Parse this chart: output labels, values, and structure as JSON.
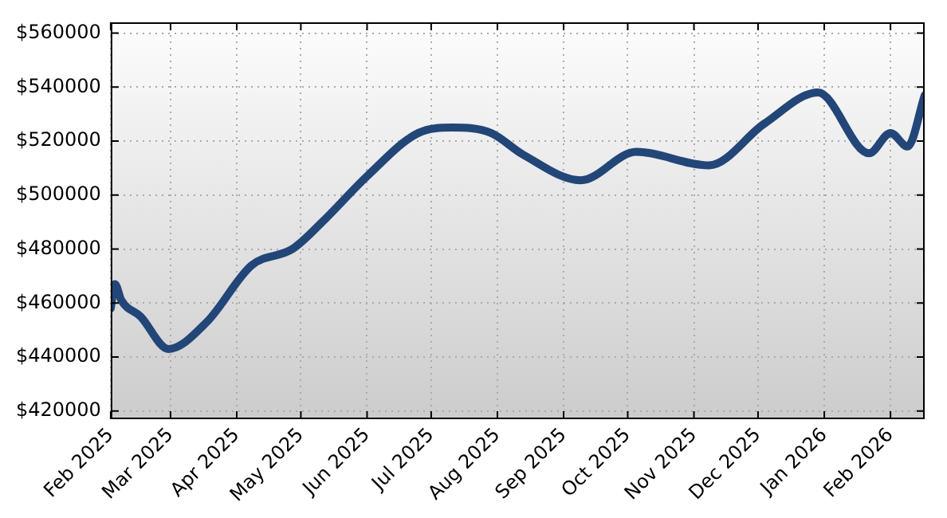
{
  "chart_data": {
    "type": "line",
    "grid": true,
    "marker": "none",
    "legend": false,
    "x": [
      "2025-02-01",
      "2025-02-03",
      "2025-02-06",
      "2025-02-15",
      "2025-02-28",
      "2025-03-18",
      "2025-04-08",
      "2025-04-27",
      "2025-05-11",
      "2025-06-01",
      "2025-06-25",
      "2025-07-11",
      "2025-07-29",
      "2025-08-13",
      "2025-09-09",
      "2025-10-05",
      "2025-11-08",
      "2025-12-04",
      "2025-12-29",
      "2026-01-22",
      "2026-02-01",
      "2026-02-09",
      "2026-02-17"
    ],
    "series": [
      {
        "color": "#234679",
        "values": [
          458000,
          467000,
          461000,
          455000,
          443000,
          453000,
          474000,
          480000,
          490000,
          507000,
          523000,
          525000,
          523000,
          515000,
          505500,
          516000,
          511000,
          526500,
          538000,
          515500,
          523000,
          518000,
          537000
        ]
      }
    ],
    "xlim": [
      "2025-02-01",
      "2026-02-17"
    ],
    "xticks": [
      {
        "value": "2025-02",
        "label": "Feb 2025"
      },
      {
        "value": "2025-03",
        "label": "Mar 2025"
      },
      {
        "value": "2025-04",
        "label": "Apr 2025"
      },
      {
        "value": "2025-05",
        "label": "May 2025"
      },
      {
        "value": "2025-06",
        "label": "Jun 2025"
      },
      {
        "value": "2025-07",
        "label": "Jul 2025"
      },
      {
        "value": "2025-08",
        "label": "Aug 2025"
      },
      {
        "value": "2025-09",
        "label": "Sep 2025"
      },
      {
        "value": "2025-10",
        "label": "Oct 2025"
      },
      {
        "value": "2025-11",
        "label": "Nov 2025"
      },
      {
        "value": "2025-12",
        "label": "Dec 2025"
      },
      {
        "value": "2026-01",
        "label": "Jan 2026"
      },
      {
        "value": "2026-02",
        "label": "Feb 2026"
      }
    ],
    "ylim": [
      417000,
      564000
    ],
    "yticks": [
      {
        "value": 420000,
        "label": "$420000"
      },
      {
        "value": 440000,
        "label": "$440000"
      },
      {
        "value": 460000,
        "label": "$460000"
      },
      {
        "value": 480000,
        "label": "$480000"
      },
      {
        "value": 500000,
        "label": "$500000"
      },
      {
        "value": 520000,
        "label": "$520000"
      },
      {
        "value": 540000,
        "label": "$540000"
      },
      {
        "value": 560000,
        "label": "$560000"
      }
    ]
  }
}
